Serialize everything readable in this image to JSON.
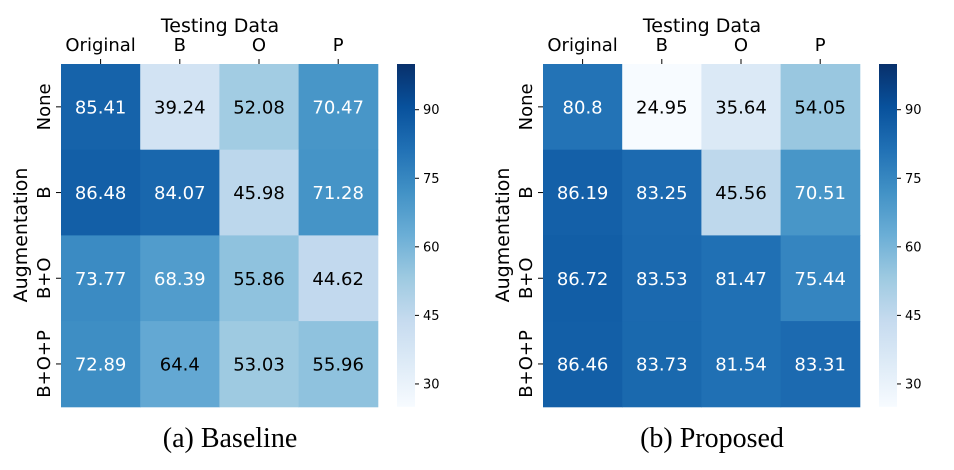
{
  "chart_data": [
    {
      "type": "heatmap",
      "caption": "(a) Baseline",
      "xlabel": "Testing Data",
      "ylabel": "Augmentation",
      "x_categories": [
        "Original",
        "B",
        "O",
        "P"
      ],
      "y_categories": [
        "None",
        "B",
        "B+O",
        "B+O+P"
      ],
      "values": [
        [
          85.41,
          39.24,
          52.08,
          70.47
        ],
        [
          86.48,
          84.07,
          45.98,
          71.28
        ],
        [
          73.77,
          68.39,
          55.86,
          44.62
        ],
        [
          72.89,
          64.4,
          53.03,
          55.96
        ]
      ],
      "labels": [
        [
          "85.41",
          "39.24",
          "52.08",
          "70.47"
        ],
        [
          "86.48",
          "84.07",
          "45.98",
          "71.28"
        ],
        [
          "73.77",
          "68.39",
          "55.86",
          "44.62"
        ],
        [
          "72.89",
          "64.4",
          "53.03",
          "55.96"
        ]
      ],
      "colormap": "Blues",
      "colorbar": {
        "range": [
          25,
          100
        ],
        "ticks": [
          30,
          45,
          60,
          75,
          90
        ]
      }
    },
    {
      "type": "heatmap",
      "caption": "(b) Proposed",
      "xlabel": "Testing Data",
      "ylabel": "Augmentation",
      "x_categories": [
        "Original",
        "B",
        "O",
        "P"
      ],
      "y_categories": [
        "None",
        "B",
        "B+O",
        "B+O+P"
      ],
      "values": [
        [
          80.8,
          24.95,
          35.64,
          54.05
        ],
        [
          86.19,
          83.25,
          45.56,
          70.51
        ],
        [
          86.72,
          83.53,
          81.47,
          75.44
        ],
        [
          86.46,
          83.73,
          81.54,
          83.31
        ]
      ],
      "labels": [
        [
          "80.8",
          "24.95",
          "35.64",
          "54.05"
        ],
        [
          "86.19",
          "83.25",
          "45.56",
          "70.51"
        ],
        [
          "86.72",
          "83.53",
          "81.47",
          "75.44"
        ],
        [
          "86.46",
          "83.73",
          "81.54",
          "83.31"
        ]
      ],
      "colormap": "Blues",
      "colorbar": {
        "range": [
          25,
          100
        ],
        "ticks": [
          30,
          45,
          60,
          75,
          90
        ]
      }
    }
  ]
}
